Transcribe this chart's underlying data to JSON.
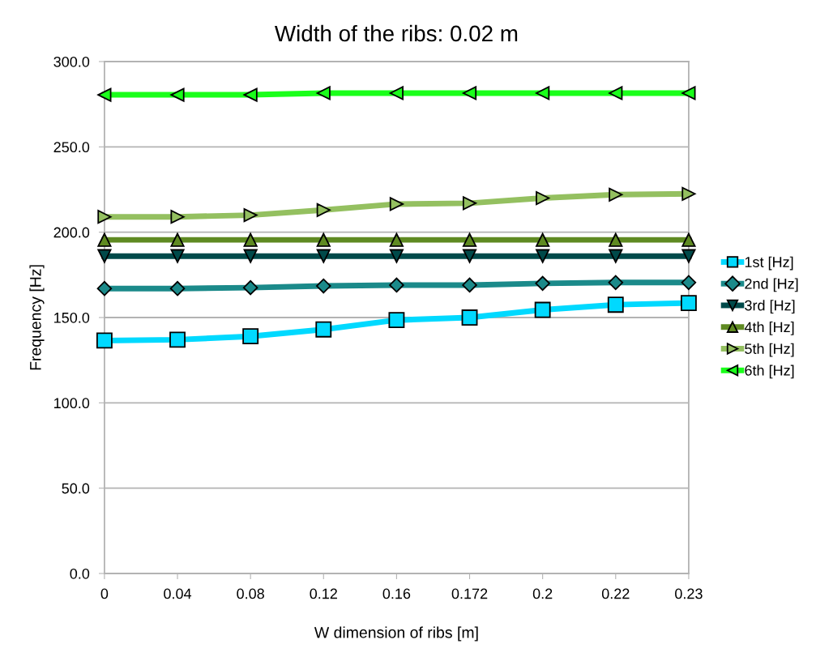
{
  "chart_data": {
    "type": "line",
    "title": "Width of the ribs: 0.02 m",
    "xlabel": "W dimension of ribs [m]",
    "ylabel": "Frequency [Hz]",
    "categories": [
      "0",
      "0.04",
      "0.08",
      "0.12",
      "0.16",
      "0.172",
      "0.2",
      "0.22",
      "0.23"
    ],
    "ylim": [
      0,
      300
    ],
    "yticks": [
      {
        "value": 0,
        "label": "0.0"
      },
      {
        "value": 50,
        "label": "50.0"
      },
      {
        "value": 100,
        "label": "100.0"
      },
      {
        "value": 150,
        "label": "150.0"
      },
      {
        "value": 200,
        "label": "200.0"
      },
      {
        "value": 250,
        "label": "250.0"
      },
      {
        "value": 300,
        "label": "300.0"
      }
    ],
    "grid": "y",
    "legend": "right",
    "series": [
      {
        "name": "1st [Hz]",
        "color": "#00d9ff",
        "marker": "square",
        "values": [
          136.5,
          137,
          139,
          143,
          148.5,
          150,
          154.5,
          157.5,
          158.5
        ]
      },
      {
        "name": "2nd [Hz]",
        "color": "#1b8a8a",
        "marker": "diamond",
        "values": [
          167,
          167,
          167.5,
          168.5,
          169,
          169,
          170,
          170.5,
          170.5
        ]
      },
      {
        "name": "3rd [Hz]",
        "color": "#004a4a",
        "marker": "triangle_down",
        "values": [
          186,
          186,
          186,
          186,
          186,
          186,
          186,
          186,
          186
        ]
      },
      {
        "name": "4th [Hz]",
        "color": "#5f8a22",
        "marker": "triangle",
        "values": [
          195.5,
          195.5,
          195.5,
          195.5,
          195.5,
          195.5,
          195.5,
          195.5,
          195.5
        ]
      },
      {
        "name": "5th [Hz]",
        "color": "#94c060",
        "marker": "triangle_right",
        "values": [
          209,
          209,
          210,
          213,
          216.5,
          217,
          220,
          222,
          222.5
        ]
      },
      {
        "name": "6th [Hz]",
        "color": "#1aff1a",
        "marker": "triangle_left",
        "values": [
          280.5,
          280.5,
          280.5,
          281.5,
          281.5,
          281.5,
          281.5,
          281.5,
          281.5
        ]
      }
    ]
  }
}
